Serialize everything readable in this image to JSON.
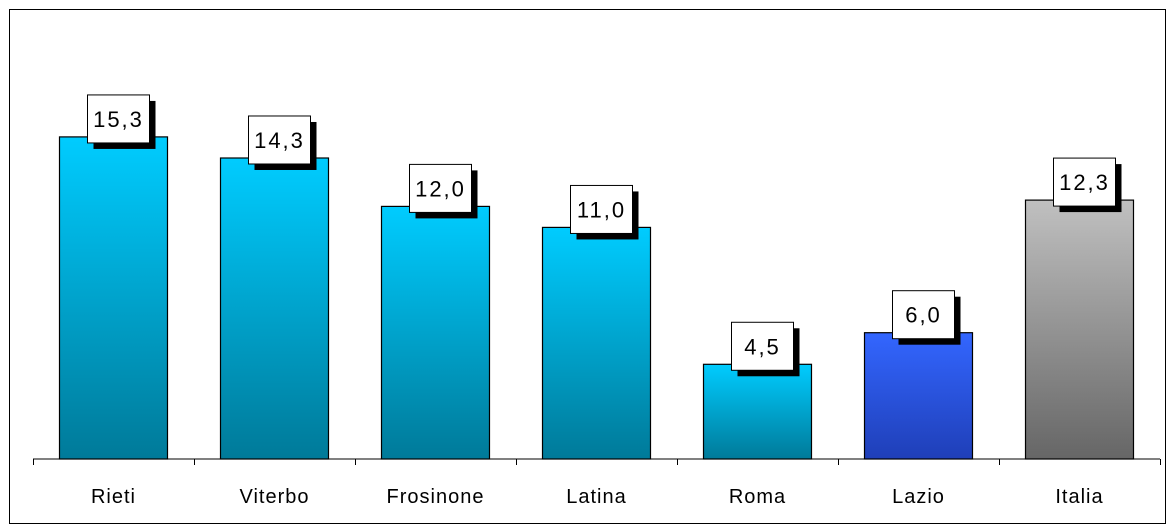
{
  "chart_data": {
    "type": "bar",
    "categories": [
      "Rieti",
      "Viterbo",
      "Frosinone",
      "Latina",
      "Roma",
      "Lazio",
      "Italia"
    ],
    "values": [
      15.3,
      14.3,
      12.0,
      11.0,
      4.5,
      6.0,
      12.3
    ],
    "value_labels": [
      "15,3",
      "14,3",
      "12,0",
      "11,0",
      "4,5",
      "6,0",
      "12,3"
    ],
    "title": "",
    "xlabel": "",
    "ylabel": "",
    "ylim": [
      0,
      20
    ],
    "grid": false,
    "legend": "none",
    "colors": {
      "province": {
        "top": "#00ccff",
        "bottom": "#007a99"
      },
      "region": {
        "top": "#3366ff",
        "bottom": "#1f3fb8"
      },
      "national": {
        "top": "#c0c0c0",
        "bottom": "#666666"
      },
      "bar_outline": "#000000",
      "label_shadow": "#000000",
      "axis": "#000000"
    },
    "bar_color_groups": [
      "province",
      "province",
      "province",
      "province",
      "province",
      "region",
      "national"
    ]
  }
}
